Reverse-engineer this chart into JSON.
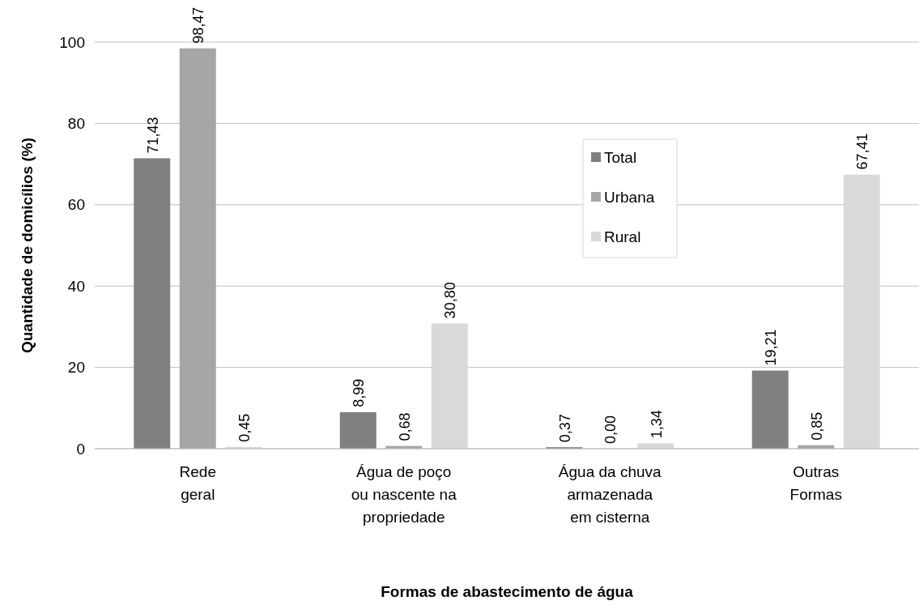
{
  "chart_data": {
    "type": "bar",
    "xlabel": "Formas de abastecimento de água",
    "ylabel": "Quantidade de domicílios (%)",
    "categories": [
      "Rede\ngeral",
      "Água de poço\nou nascente na\npropriedade",
      "Água da chuva\narmazenada\nem cisterna",
      "Outras\nFormas"
    ],
    "series": [
      {
        "name": "Total",
        "color": "#808080",
        "values": [
          71.43,
          8.99,
          0.37,
          19.21
        ],
        "value_labels": [
          "71,43",
          "8,99",
          "0,37",
          "19,21"
        ]
      },
      {
        "name": "Urbana",
        "color": "#a6a6a6",
        "values": [
          98.47,
          0.68,
          0.0,
          0.85
        ],
        "value_labels": [
          "98,47",
          "0,68",
          "0,00",
          "0,85"
        ]
      },
      {
        "name": "Rural",
        "color": "#d9d9d9",
        "values": [
          0.45,
          30.8,
          1.34,
          67.41
        ],
        "value_labels": [
          "0,45",
          "30,80",
          "1,34",
          "67,41"
        ]
      }
    ],
    "ylim": [
      0,
      100
    ],
    "yticks": [
      0,
      20,
      40,
      60,
      80,
      100
    ],
    "grid": "y",
    "legend": "right"
  }
}
